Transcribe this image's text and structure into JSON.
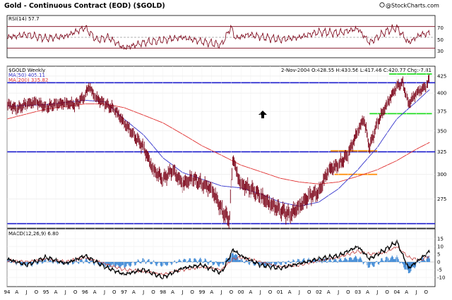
{
  "header": {
    "title": "Gold - Continuous Contract (EOD) ($GOLD)",
    "copyright": "@StockCharts.com"
  },
  "rsi_panel": {
    "label": "RSI(14) 57.7",
    "levels": [
      "70",
      "50",
      "30"
    ]
  },
  "price_panel": {
    "symbol_label": "$GOLD Weekly",
    "ma50_label": "MA(50) 405.11",
    "ma200_label": "MA(200) 335.82",
    "quote": "2-Nov-2004  O:428.55  H:430.56  L:417.46  C:420.77  Chg:-7.81",
    "y_ticks": [
      "425",
      "400",
      "375",
      "350",
      "325",
      "300",
      "275"
    ]
  },
  "macd_panel": {
    "label": "MACD(12,26,9) 6.80",
    "y_ticks": [
      "15",
      "10",
      "5",
      "0",
      "-5",
      "-10"
    ]
  },
  "colors": {
    "price_bar": "#7a0015",
    "ma50": "#3333cc",
    "ma200": "#e03030",
    "support_line": "#1a1acc",
    "green_line": "#22dd22",
    "orange_line": "#ff8800",
    "histogram": "#4a90d8",
    "rsi_fill": "#b8a888"
  },
  "chart_data": {
    "type": "line",
    "title": "Gold - Continuous Contract (EOD) ($GOLD)",
    "x_tick_labels": [
      "94",
      "A",
      "J",
      "O",
      "95",
      "A",
      "J",
      "O",
      "96",
      "A",
      "J",
      "O",
      "97",
      "A",
      "J",
      "O",
      "98",
      "A",
      "J",
      "O",
      "99",
      "A",
      "J",
      "O",
      "00",
      "A",
      "J",
      "O",
      "01",
      "A",
      "J",
      "O",
      "02",
      "A",
      "J",
      "O",
      "03",
      "A",
      "J",
      "O",
      "04",
      "A",
      "J",
      "O"
    ],
    "horizontal_lines": [
      {
        "price": 415,
        "color": "blue"
      },
      {
        "price": 325,
        "color": "blue"
      },
      {
        "price": 252,
        "color": "blue"
      },
      {
        "price": 428,
        "color": "green",
        "from": 2003.8,
        "to": 2004.9
      },
      {
        "price": 372,
        "color": "green",
        "from": 2003.3,
        "to": 2004.9
      },
      {
        "price": 326,
        "color": "orange",
        "from": 2002.3,
        "to": 2003.5
      },
      {
        "price": 300,
        "color": "orange",
        "from": 2002.4,
        "to": 2003.5
      }
    ],
    "series": [
      {
        "name": "$GOLD Weekly",
        "x": [
          1994.0,
          1994.25,
          1994.5,
          1994.75,
          1995.0,
          1995.25,
          1995.5,
          1995.75,
          1996.0,
          1996.1,
          1996.25,
          1996.5,
          1996.75,
          1997.0,
          1997.25,
          1997.5,
          1997.75,
          1998.0,
          1998.25,
          1998.5,
          1998.75,
          1999.0,
          1999.25,
          1999.5,
          1999.7,
          1999.8,
          1999.9,
          2000.0,
          2000.25,
          2000.5,
          2000.75,
          2001.0,
          2001.25,
          2001.5,
          2001.75,
          2002.0,
          2002.25,
          2002.5,
          2002.75,
          2003.0,
          2003.15,
          2003.3,
          2003.5,
          2003.75,
          2004.0,
          2004.15,
          2004.3,
          2004.5,
          2004.75,
          2004.84
        ],
        "values": [
          385,
          378,
          385,
          388,
          380,
          385,
          386,
          384,
          396,
          410,
          395,
          385,
          378,
          360,
          345,
          330,
          305,
          295,
          305,
          290,
          296,
          290,
          285,
          265,
          255,
          320,
          300,
          290,
          285,
          278,
          270,
          265,
          260,
          268,
          278,
          282,
          305,
          310,
          322,
          350,
          365,
          330,
          360,
          385,
          410,
          415,
          385,
          400,
          410,
          420
        ]
      },
      {
        "name": "MA(50)",
        "x": [
          1994.0,
          1995.0,
          1996.0,
          1996.5,
          1997.0,
          1997.5,
          1998.0,
          1998.5,
          1999.0,
          1999.5,
          2000.0,
          2000.5,
          2001.0,
          2001.5,
          2002.0,
          2002.5,
          2003.0,
          2003.5,
          2004.0,
          2004.5,
          2004.84
        ],
        "values": [
          382,
          384,
          390,
          388,
          365,
          345,
          318,
          302,
          295,
          288,
          286,
          280,
          272,
          268,
          272,
          285,
          305,
          330,
          365,
          388,
          405
        ]
      },
      {
        "name": "MA(200)",
        "x": [
          1994.0,
          1995.0,
          1996.0,
          1996.5,
          1997.0,
          1998.0,
          1999.0,
          2000.0,
          2001.0,
          2001.5,
          2002.0,
          2002.5,
          2003.0,
          2003.5,
          2004.0,
          2004.5,
          2004.84
        ],
        "values": [
          365,
          378,
          385,
          385,
          380,
          360,
          332,
          310,
          296,
          292,
          290,
          292,
          298,
          305,
          315,
          328,
          336
        ]
      }
    ],
    "rsi": {
      "x": [
        1994.0,
        1994.5,
        1995.0,
        1995.5,
        1996.0,
        1996.3,
        1996.6,
        1997.0,
        1997.5,
        1998.0,
        1998.5,
        1999.0,
        1999.5,
        1999.75,
        1999.85,
        2000.2,
        2000.6,
        2001.0,
        2001.5,
        2002.0,
        2002.5,
        2003.0,
        2003.3,
        2003.7,
        2004.0,
        2004.3,
        2004.6,
        2004.84
      ],
      "values": [
        50,
        55,
        48,
        52,
        68,
        45,
        50,
        30,
        40,
        45,
        50,
        42,
        36,
        70,
        48,
        55,
        50,
        46,
        50,
        60,
        58,
        66,
        40,
        60,
        68,
        40,
        55,
        57.7
      ]
    },
    "macd": {
      "x": [
        1994.0,
        1994.5,
        1995.0,
        1995.5,
        1996.0,
        1996.5,
        1997.0,
        1997.5,
        1998.0,
        1998.5,
        1999.0,
        1999.5,
        1999.8,
        2000.0,
        2000.5,
        2001.0,
        2001.5,
        2002.0,
        2002.5,
        2003.0,
        2003.3,
        2003.7,
        2004.0,
        2004.3,
        2004.6,
        2004.84
      ],
      "values": [
        2,
        -2,
        3,
        -1,
        4,
        -3,
        -8,
        -5,
        -10,
        -4,
        -2,
        -7,
        8,
        4,
        -2,
        -4,
        -1,
        2,
        4,
        10,
        2,
        8,
        13,
        -4,
        2,
        6.8
      ],
      "signal_values": [
        1,
        0,
        2,
        0,
        3,
        -1,
        -5,
        -6,
        -8,
        -5,
        -3,
        -5,
        2,
        3,
        0,
        -3,
        -2,
        1,
        3,
        7,
        5,
        6,
        10,
        3,
        1,
        4
      ]
    }
  }
}
